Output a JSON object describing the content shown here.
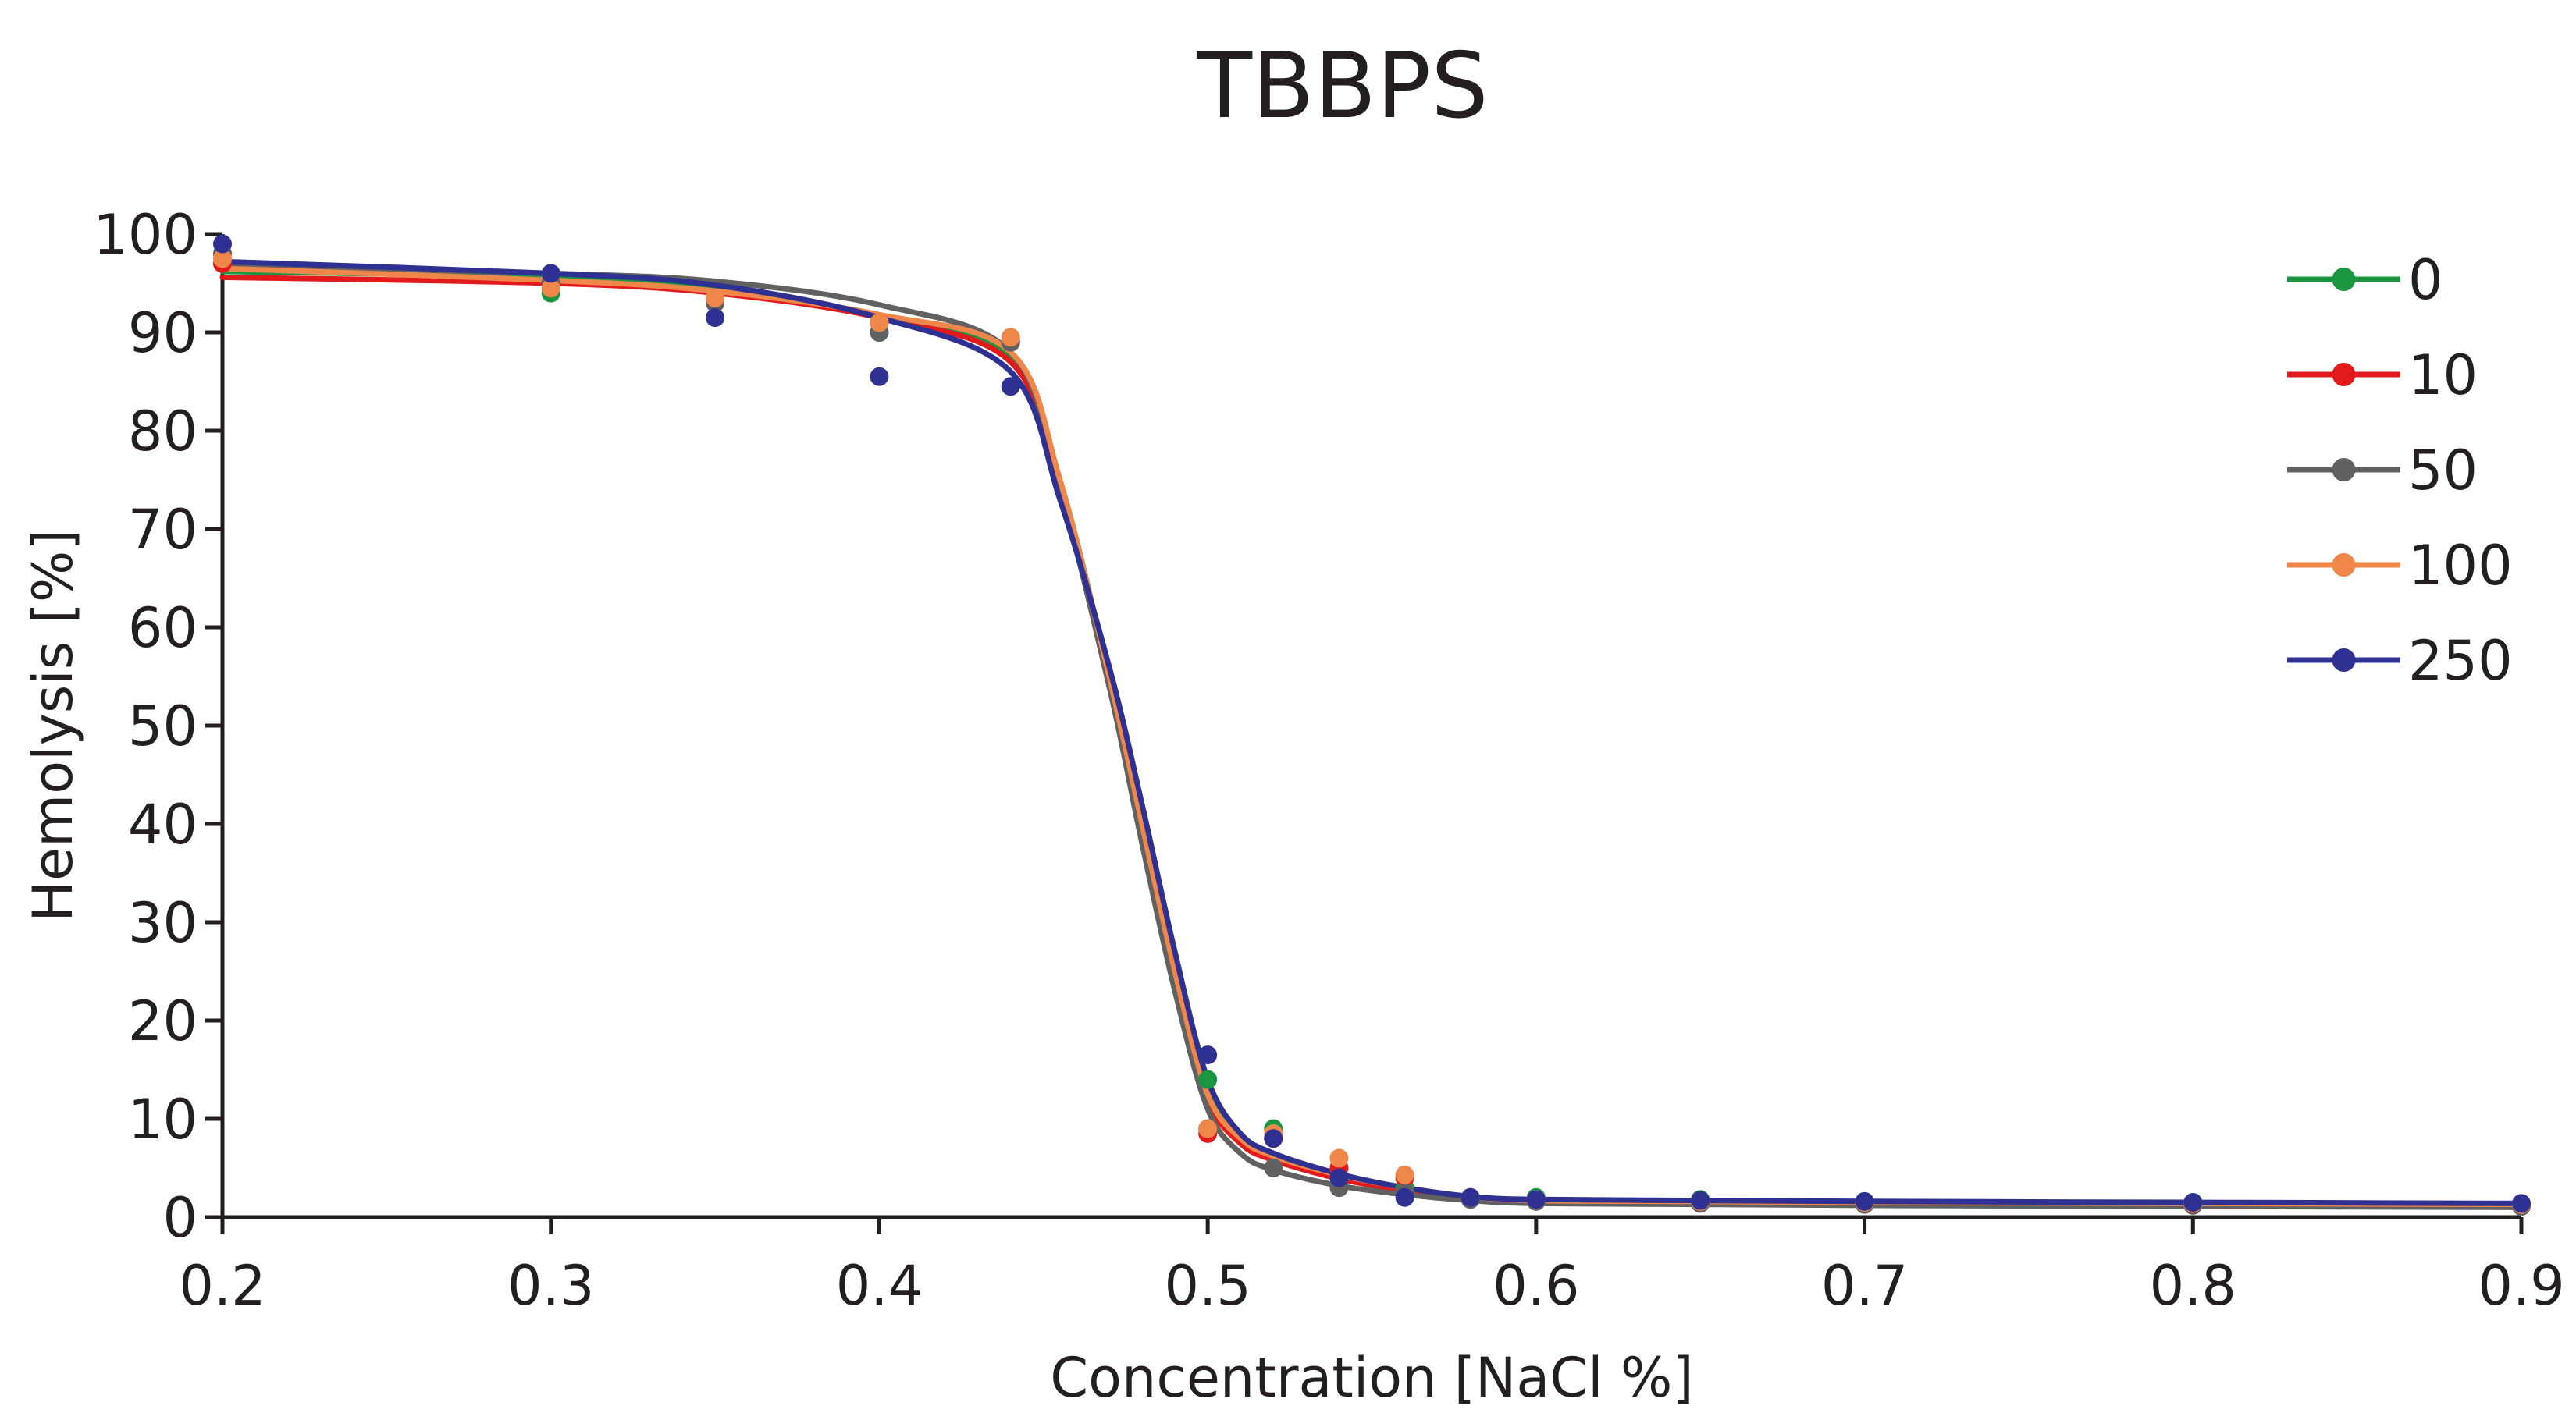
{
  "chart_data": {
    "type": "scatter",
    "title": "TBBPS",
    "xlabel": "Concentration [NaCl %]",
    "ylabel": "Hemolysis [%]",
    "xlim": [
      0.2,
      0.9
    ],
    "ylim": [
      0,
      100
    ],
    "xticks": [
      "0.2",
      "0.3",
      "0.4",
      "0.5",
      "0.6",
      "0.7",
      "0.8",
      "0.9"
    ],
    "yticks": [
      "0",
      "10",
      "20",
      "30",
      "40",
      "50",
      "60",
      "70",
      "80",
      "90",
      "100"
    ],
    "legend_position": "top-right",
    "fit": "sigmoid curve per series",
    "series": [
      {
        "name": "0",
        "color": "#1a9641",
        "points": [
          [
            0.2,
            97
          ],
          [
            0.3,
            94
          ],
          [
            0.35,
            93
          ],
          [
            0.4,
            90
          ],
          [
            0.44,
            89
          ],
          [
            0.5,
            14
          ],
          [
            0.52,
            9
          ],
          [
            0.54,
            5
          ],
          [
            0.56,
            3
          ],
          [
            0.58,
            2
          ],
          [
            0.6,
            2
          ],
          [
            0.65,
            1.8
          ],
          [
            0.7,
            1.6
          ],
          [
            0.8,
            1.5
          ],
          [
            0.9,
            1.3
          ]
        ],
        "curve": [
          [
            0.2,
            96.2
          ],
          [
            0.3,
            95.6
          ],
          [
            0.35,
            94.6
          ],
          [
            0.4,
            91.5
          ],
          [
            0.44,
            87.5
          ],
          [
            0.455,
            75
          ],
          [
            0.47,
            55
          ],
          [
            0.48,
            40
          ],
          [
            0.49,
            25
          ],
          [
            0.5,
            13
          ],
          [
            0.51,
            8
          ],
          [
            0.52,
            6
          ],
          [
            0.54,
            4
          ],
          [
            0.56,
            2.8
          ],
          [
            0.58,
            2
          ],
          [
            0.6,
            1.7
          ],
          [
            0.65,
            1.6
          ],
          [
            0.7,
            1.5
          ],
          [
            0.8,
            1.4
          ],
          [
            0.9,
            1.3
          ]
        ]
      },
      {
        "name": "10",
        "color": "#e31a1c",
        "points": [
          [
            0.2,
            97
          ],
          [
            0.3,
            95
          ],
          [
            0.35,
            93
          ],
          [
            0.4,
            91
          ],
          [
            0.44,
            89
          ],
          [
            0.5,
            8.5
          ],
          [
            0.52,
            8
          ],
          [
            0.54,
            5
          ],
          [
            0.56,
            4
          ],
          [
            0.58,
            2
          ],
          [
            0.6,
            1.8
          ],
          [
            0.65,
            1.5
          ],
          [
            0.7,
            1.4
          ],
          [
            0.8,
            1.3
          ],
          [
            0.9,
            1.2
          ]
        ],
        "curve": [
          [
            0.2,
            95.6
          ],
          [
            0.3,
            95
          ],
          [
            0.35,
            94
          ],
          [
            0.4,
            91.5
          ],
          [
            0.44,
            87
          ],
          [
            0.455,
            74
          ],
          [
            0.47,
            54
          ],
          [
            0.48,
            39
          ],
          [
            0.49,
            24
          ],
          [
            0.5,
            12
          ],
          [
            0.51,
            7.5
          ],
          [
            0.52,
            5.8
          ],
          [
            0.54,
            3.9
          ],
          [
            0.56,
            2.7
          ],
          [
            0.58,
            1.9
          ],
          [
            0.6,
            1.5
          ],
          [
            0.65,
            1.4
          ],
          [
            0.7,
            1.3
          ],
          [
            0.8,
            1.2
          ],
          [
            0.9,
            1.1
          ]
        ]
      },
      {
        "name": "50",
        "color": "#616161",
        "points": [
          [
            0.2,
            98
          ],
          [
            0.3,
            95
          ],
          [
            0.35,
            93
          ],
          [
            0.4,
            90
          ],
          [
            0.44,
            89
          ],
          [
            0.5,
            9
          ],
          [
            0.52,
            5
          ],
          [
            0.54,
            3
          ],
          [
            0.56,
            2.5
          ],
          [
            0.58,
            1.8
          ],
          [
            0.6,
            1.6
          ],
          [
            0.65,
            1.4
          ],
          [
            0.7,
            1.3
          ],
          [
            0.8,
            1.2
          ],
          [
            0.9,
            1.1
          ]
        ],
        "curve": [
          [
            0.2,
            96.8
          ],
          [
            0.3,
            96
          ],
          [
            0.35,
            95.2
          ],
          [
            0.4,
            92.8
          ],
          [
            0.44,
            88
          ],
          [
            0.455,
            74
          ],
          [
            0.47,
            54
          ],
          [
            0.48,
            38
          ],
          [
            0.49,
            23
          ],
          [
            0.5,
            11
          ],
          [
            0.51,
            6.5
          ],
          [
            0.52,
            4.8
          ],
          [
            0.54,
            3.2
          ],
          [
            0.56,
            2.3
          ],
          [
            0.58,
            1.7
          ],
          [
            0.6,
            1.4
          ],
          [
            0.65,
            1.3
          ],
          [
            0.7,
            1.2
          ],
          [
            0.8,
            1.1
          ],
          [
            0.9,
            1
          ]
        ]
      },
      {
        "name": "100",
        "color": "#f0874a",
        "points": [
          [
            0.2,
            97.5
          ],
          [
            0.3,
            94.5
          ],
          [
            0.35,
            93.5
          ],
          [
            0.4,
            91
          ],
          [
            0.44,
            89.5
          ],
          [
            0.5,
            9
          ],
          [
            0.52,
            8.5
          ],
          [
            0.54,
            6
          ],
          [
            0.56,
            4.3
          ],
          [
            0.58,
            2
          ],
          [
            0.6,
            1.8
          ],
          [
            0.65,
            1.6
          ],
          [
            0.7,
            1.5
          ],
          [
            0.8,
            1.4
          ],
          [
            0.9,
            1.3
          ]
        ],
        "curve": [
          [
            0.2,
            96.5
          ],
          [
            0.3,
            95.3
          ],
          [
            0.35,
            94.2
          ],
          [
            0.4,
            91.8
          ],
          [
            0.44,
            88
          ],
          [
            0.455,
            75
          ],
          [
            0.47,
            55
          ],
          [
            0.48,
            40
          ],
          [
            0.49,
            25
          ],
          [
            0.5,
            12.5
          ],
          [
            0.51,
            8
          ],
          [
            0.52,
            6.2
          ],
          [
            0.54,
            4.3
          ],
          [
            0.56,
            3
          ],
          [
            0.58,
            2.1
          ],
          [
            0.6,
            1.7
          ],
          [
            0.65,
            1.6
          ],
          [
            0.7,
            1.5
          ],
          [
            0.8,
            1.4
          ],
          [
            0.9,
            1.3
          ]
        ]
      },
      {
        "name": "250",
        "color": "#2e3192",
        "points": [
          [
            0.2,
            99
          ],
          [
            0.3,
            96
          ],
          [
            0.35,
            91.5
          ],
          [
            0.4,
            85.5
          ],
          [
            0.44,
            84.5
          ],
          [
            0.5,
            16.5
          ],
          [
            0.52,
            8
          ],
          [
            0.54,
            4
          ],
          [
            0.56,
            2
          ],
          [
            0.58,
            2
          ],
          [
            0.6,
            1.8
          ],
          [
            0.65,
            1.7
          ],
          [
            0.7,
            1.6
          ],
          [
            0.8,
            1.5
          ],
          [
            0.9,
            1.4
          ]
        ],
        "curve": [
          [
            0.2,
            97.2
          ],
          [
            0.3,
            96
          ],
          [
            0.35,
            94.8
          ],
          [
            0.4,
            91.5
          ],
          [
            0.44,
            86
          ],
          [
            0.455,
            73
          ],
          [
            0.47,
            56
          ],
          [
            0.48,
            42
          ],
          [
            0.49,
            27
          ],
          [
            0.5,
            14
          ],
          [
            0.51,
            8.5
          ],
          [
            0.52,
            6.5
          ],
          [
            0.54,
            4.4
          ],
          [
            0.56,
            3
          ],
          [
            0.58,
            2.1
          ],
          [
            0.6,
            1.8
          ],
          [
            0.65,
            1.7
          ],
          [
            0.7,
            1.6
          ],
          [
            0.8,
            1.5
          ],
          [
            0.9,
            1.4
          ]
        ]
      }
    ]
  }
}
